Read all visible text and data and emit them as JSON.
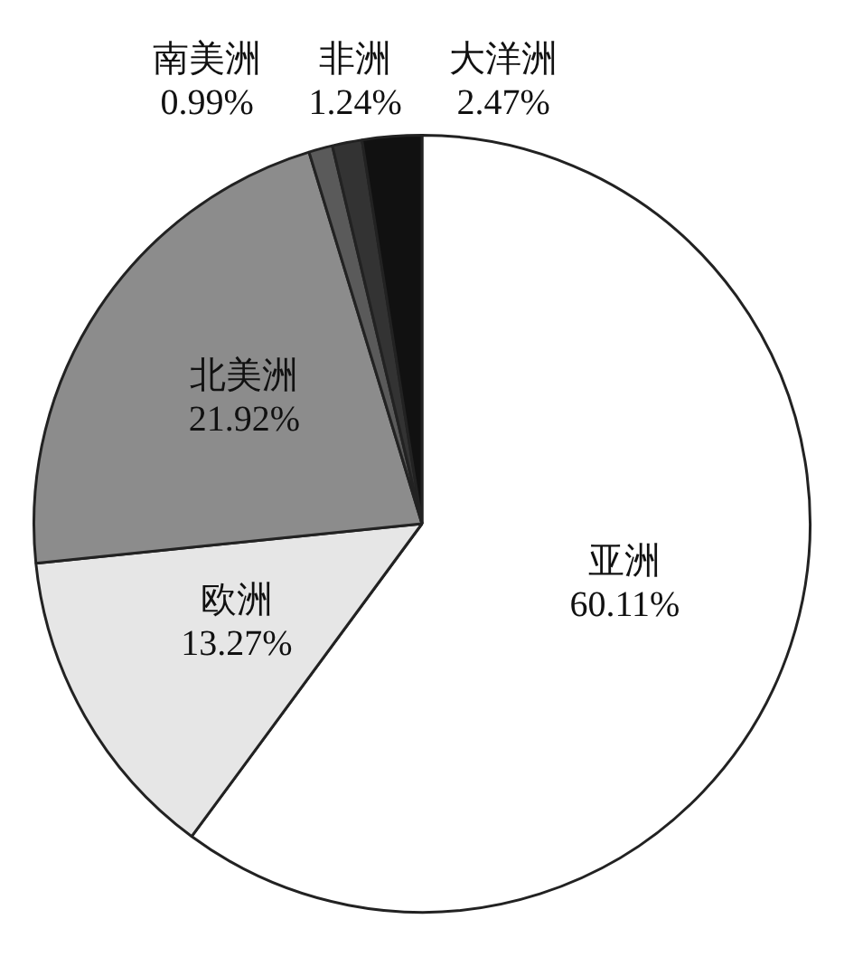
{
  "chart_data": {
    "type": "pie",
    "categories": [
      "亚洲",
      "欧洲",
      "北美洲",
      "南美洲",
      "非洲",
      "大洋洲"
    ],
    "values": [
      60.11,
      13.27,
      21.92,
      0.99,
      1.24,
      2.47
    ],
    "value_labels": [
      "60.11%",
      "13.27%",
      "21.92%",
      "0.99%",
      "1.24%",
      "2.47%"
    ],
    "colors": [
      "#ffffff",
      "#e6e6e6",
      "#8c8c8c",
      "#5a5a5a",
      "#333333",
      "#111111"
    ],
    "legend": false
  }
}
